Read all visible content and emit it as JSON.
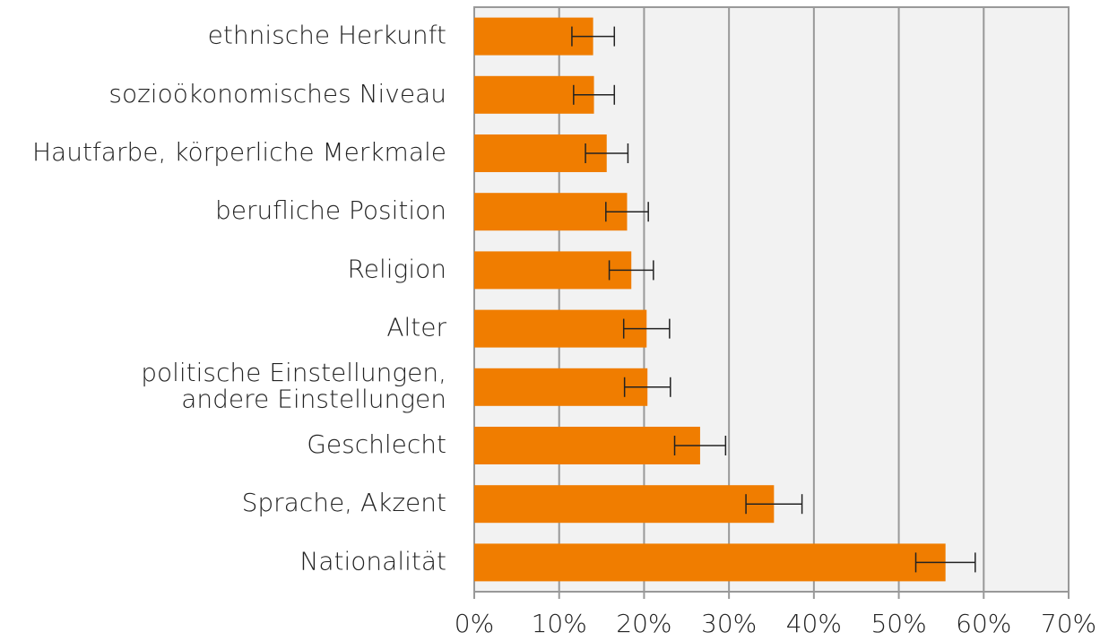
{
  "chart_data": {
    "type": "bar",
    "orientation": "horizontal",
    "categories": [
      "ethnische Herkunft",
      "sozioökonomisches Niveau",
      "Hautfarbe, körperliche Merkmale",
      "berufliche Position",
      "Religion",
      "Alter",
      "politische Einstellungen,\nandere Einstellungen",
      "Geschlecht",
      "Sprache, Akzent",
      "Nationalität"
    ],
    "values": [
      14.0,
      14.1,
      15.6,
      18.0,
      18.5,
      20.3,
      20.4,
      26.6,
      35.3,
      55.5
    ],
    "errors": [
      2.5,
      2.4,
      2.5,
      2.5,
      2.6,
      2.7,
      2.7,
      3.0,
      3.3,
      3.5
    ],
    "color": "#f07d00",
    "xlim": [
      0,
      70
    ],
    "xticks": [
      {
        "value": 0,
        "label": "0%"
      },
      {
        "value": 10,
        "label": "10%"
      },
      {
        "value": 20,
        "label": "20%"
      },
      {
        "value": 30,
        "label": "30%"
      },
      {
        "value": 40,
        "label": "40%"
      },
      {
        "value": 50,
        "label": "50%"
      },
      {
        "value": 60,
        "label": "60%"
      },
      {
        "value": 70,
        "label": "70%"
      }
    ],
    "grid": true
  }
}
